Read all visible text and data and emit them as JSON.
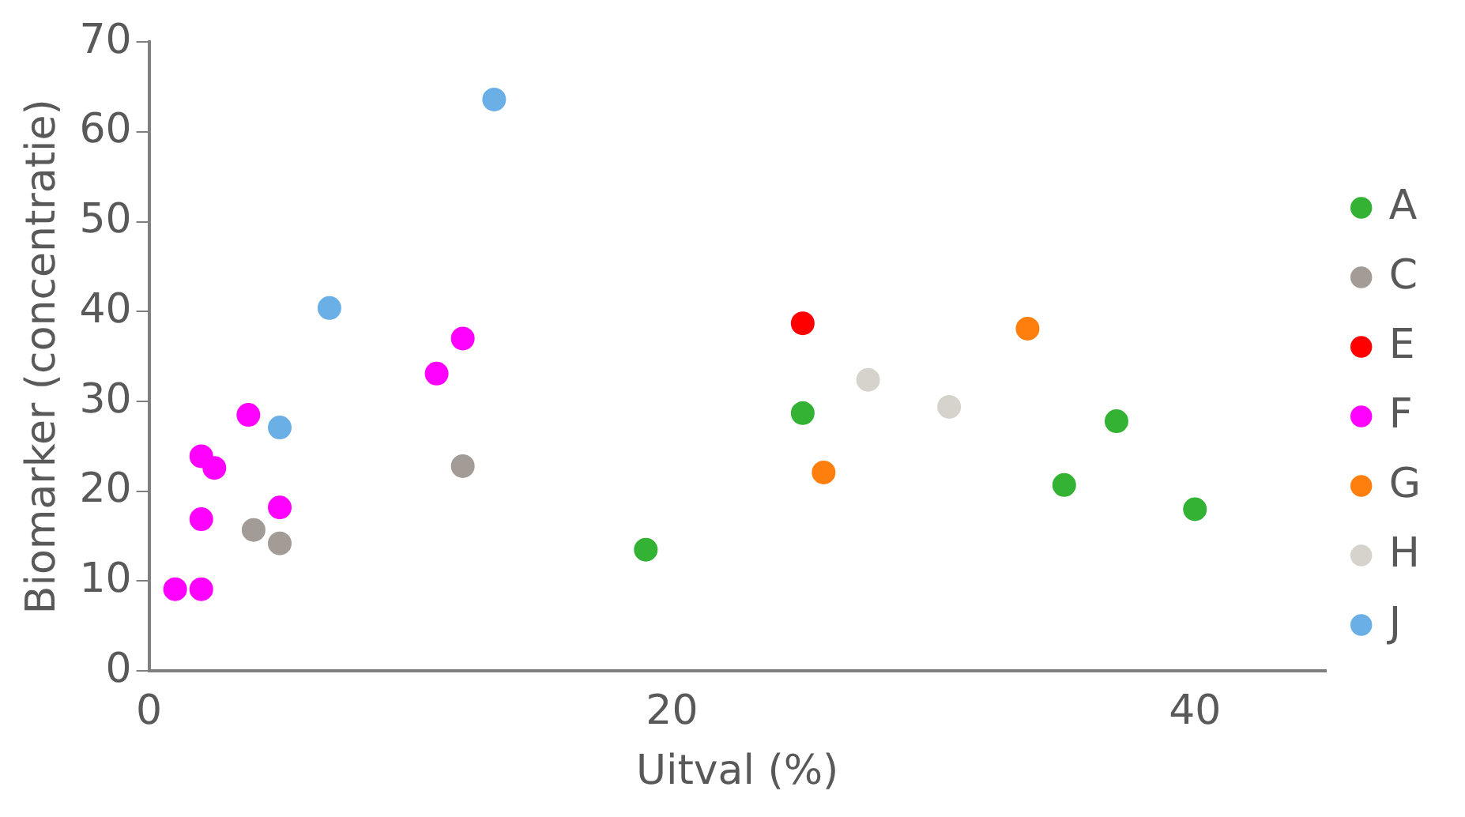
{
  "chart_data": {
    "type": "scatter",
    "xlabel": "Uitval (%)",
    "ylabel": "Biomarker (concentratie)",
    "xlim": [
      0,
      45
    ],
    "xticks": [
      0,
      20,
      40
    ],
    "ylim": [
      0,
      70
    ],
    "yticks": [
      0,
      10,
      20,
      30,
      40,
      50,
      60,
      70
    ],
    "grid": false,
    "legend": "right",
    "marker": "circle",
    "series": [
      {
        "name": "A",
        "color": "#33b233",
        "x": [
          19,
          25,
          35,
          37,
          40
        ],
        "values": [
          13.5,
          28.7,
          20.7,
          27.8,
          18.0
        ]
      },
      {
        "name": "C",
        "color": "#a39c96",
        "x": [
          4,
          5,
          12
        ],
        "values": [
          15.7,
          14.2,
          22.8
        ]
      },
      {
        "name": "E",
        "color": "#ff0000",
        "x": [
          25
        ],
        "values": [
          38.7
        ]
      },
      {
        "name": "F",
        "color": "#ff00ff",
        "x": [
          1,
          2,
          2,
          2,
          2.5,
          3.8,
          5,
          11,
          12
        ],
        "values": [
          9.1,
          9.1,
          16.9,
          23.9,
          22.6,
          28.5,
          18.2,
          33.1,
          37.0
        ]
      },
      {
        "name": "G",
        "color": "#ff7f0e",
        "x": [
          25.8,
          33.6
        ],
        "values": [
          22.1,
          38.1
        ]
      },
      {
        "name": "H",
        "color": "#d6d3cc",
        "x": [
          27.5,
          30.6
        ],
        "values": [
          32.4,
          29.4
        ]
      },
      {
        "name": "J",
        "color": "#6aafe6",
        "x": [
          5,
          6.9,
          13.2
        ],
        "values": [
          27.1,
          40.4,
          63.6
        ]
      }
    ]
  }
}
